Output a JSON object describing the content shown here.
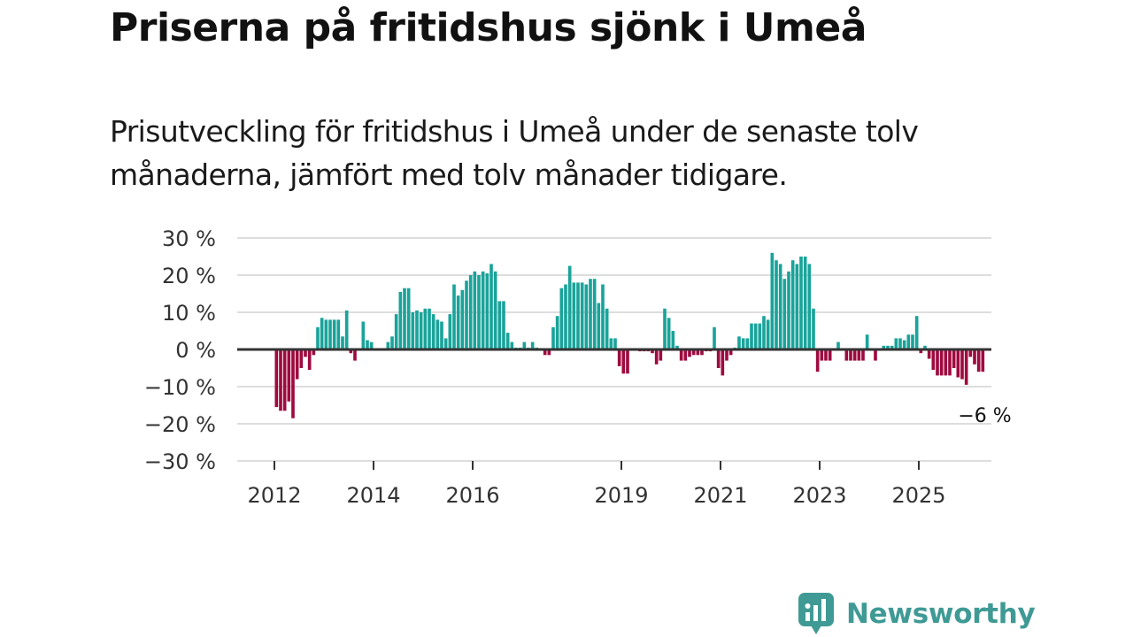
{
  "title": "Priserna på fritidshus sjönk i Umeå",
  "subtitle": "Prisutveckling för fritidshus i Umeå under de senaste tolv månaderna, jämfört med tolv månader tidigare.",
  "brand": {
    "name": "Newsworthy",
    "icon": "newsworthy-logo-icon"
  },
  "colors": {
    "positive": "#1aa39a",
    "negative": "#9e0a3f",
    "grid": "#dddddd",
    "zero_line": "#333333",
    "brand": "#3f9a95"
  },
  "chart_data": {
    "type": "bar",
    "title": "Priserna på fritidshus sjönk i Umeå",
    "xlabel": "",
    "ylabel": "",
    "ylim": [
      -30,
      30
    ],
    "y_ticks": [
      {
        "value": 30,
        "label": "30 %"
      },
      {
        "value": 20,
        "label": "20 %"
      },
      {
        "value": 10,
        "label": "10 %"
      },
      {
        "value": 0,
        "label": "0 %"
      },
      {
        "value": -10,
        "label": "−10 %"
      },
      {
        "value": -20,
        "label": "−20 %"
      },
      {
        "value": -30,
        "label": "−30 %"
      }
    ],
    "x_ticks": [
      {
        "year": 2012,
        "label": "2012"
      },
      {
        "year": 2014,
        "label": "2014"
      },
      {
        "year": 2016,
        "label": "2016"
      },
      {
        "year": 2019,
        "label": "2019"
      },
      {
        "year": 2021,
        "label": "2021"
      },
      {
        "year": 2023,
        "label": "2023"
      },
      {
        "year": 2025,
        "label": "2025"
      }
    ],
    "start": "2012-01",
    "series": [
      {
        "name": "Prisutveckling",
        "values": [
          -15.5,
          -16.5,
          -16.5,
          -14,
          -18.5,
          -8,
          -5,
          -2,
          -5.5,
          -1.5,
          6,
          8.5,
          8,
          8,
          8,
          8,
          3.5,
          10.5,
          -1,
          -3,
          0,
          7.5,
          2.5,
          2,
          0,
          0,
          0,
          2,
          3.5,
          9.5,
          15.5,
          16.5,
          16.5,
          10,
          10.5,
          10,
          11,
          11,
          9.5,
          8,
          7.5,
          3,
          9.5,
          17.5,
          14.5,
          16,
          18.5,
          20,
          21,
          20,
          21,
          20.5,
          23,
          21,
          13,
          13,
          4.5,
          2,
          0.5,
          0.5,
          2,
          0.5,
          2,
          0.5,
          0,
          -1.5,
          -1.5,
          6,
          9,
          16.5,
          17.5,
          22.5,
          18,
          18,
          18,
          17.5,
          19,
          19,
          12.5,
          17.5,
          11,
          3,
          3,
          -4.5,
          -6.5,
          -6.5,
          0,
          0,
          -0.5,
          -0.5,
          -0.5,
          -1,
          -4,
          -3,
          11,
          8.5,
          5,
          1,
          -3,
          -3,
          -2,
          -1.5,
          -1.5,
          -1.5,
          -0.5,
          -0.5,
          6,
          -5,
          -7,
          -3,
          -1.5,
          0.5,
          3.5,
          3,
          3,
          7,
          7,
          7,
          9,
          8,
          26,
          24,
          23,
          19,
          21,
          24,
          23,
          25,
          25,
          23,
          11,
          -6,
          -3,
          -3,
          -3,
          0,
          2,
          0,
          -3,
          -3,
          -3,
          -3,
          -3,
          4,
          0,
          -3,
          0,
          1,
          1,
          1,
          3,
          3,
          2.5,
          4,
          4,
          9,
          -1,
          1,
          -2.5,
          -5.5,
          -7,
          -7,
          -7,
          -7,
          -5,
          -7.5,
          -8,
          -9.5,
          -2,
          -4,
          -6,
          -6
        ]
      }
    ],
    "annotation": {
      "label": "−6 %",
      "date": "2026-04",
      "value": -6
    }
  }
}
